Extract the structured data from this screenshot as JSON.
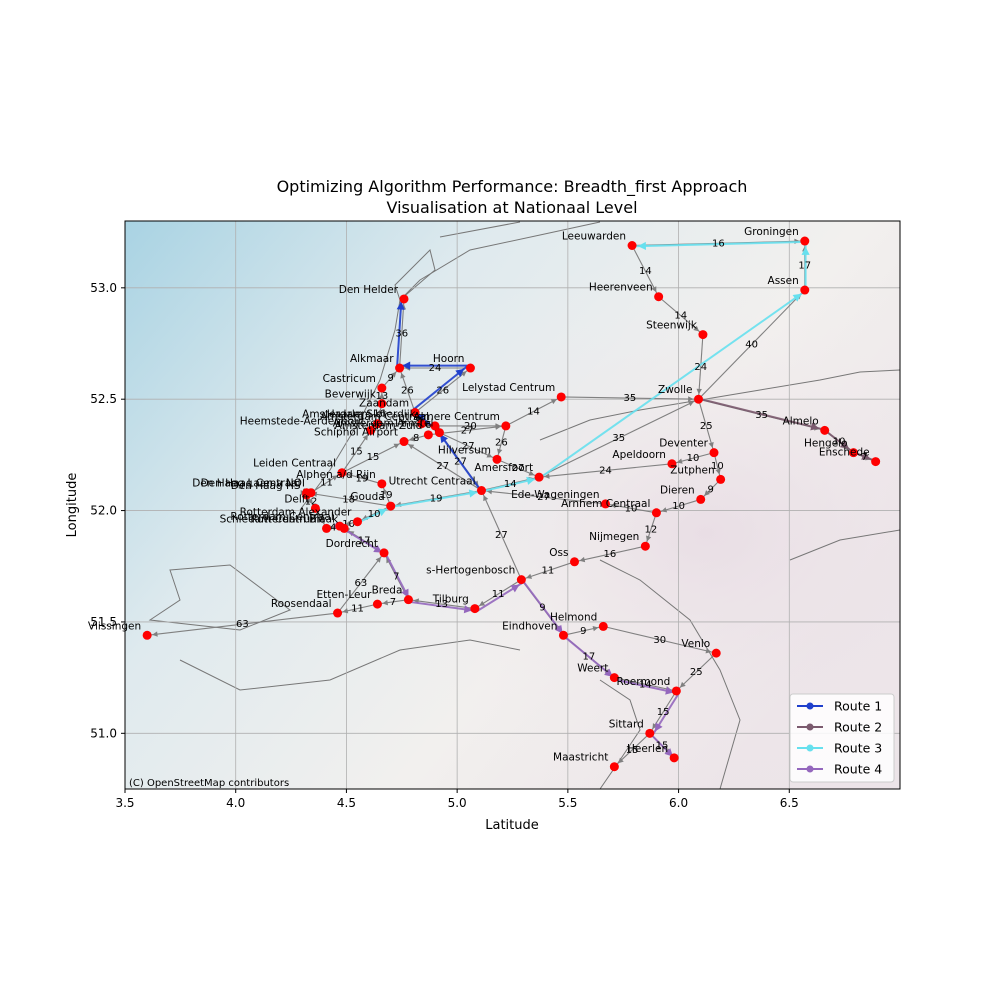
{
  "chart_data": {
    "type": "scatter",
    "title": "Optimizing Algorithm Performance: Breadth_first Approach",
    "subtitle": "Visualisation at Nationaal Level",
    "xlabel": "Latitude",
    "ylabel": "Longitude",
    "xlim": [
      3.5,
      7.0
    ],
    "ylim": [
      50.75,
      53.3
    ],
    "xticks": [
      "3.5",
      "4.0",
      "4.5",
      "5.0",
      "5.5",
      "6.0",
      "6.5"
    ],
    "yticks": [
      "51.0",
      "51.5",
      "52.0",
      "52.5",
      "53.0"
    ],
    "grid": true,
    "attribution": "(C) OpenStreetMap contributors",
    "legend_position": "lower-right",
    "colors": {
      "node": "#ff0000",
      "edge": "#808080",
      "route1": "#1f3fcc",
      "route2": "#7b5a6e",
      "route3": "#66e0ee",
      "route4": "#9467bd"
    },
    "stations": [
      {
        "name": "Groningen",
        "x": 6.57,
        "y": 53.21
      },
      {
        "name": "Leeuwarden",
        "x": 5.79,
        "y": 53.19
      },
      {
        "name": "Assen",
        "x": 6.57,
        "y": 52.99
      },
      {
        "name": "Heerenveen",
        "x": 5.91,
        "y": 52.96
      },
      {
        "name": "Den Helder",
        "x": 4.76,
        "y": 52.95
      },
      {
        "name": "Steenwijk",
        "x": 6.11,
        "y": 52.79
      },
      {
        "name": "Alkmaar",
        "x": 4.74,
        "y": 52.64
      },
      {
        "name": "Hoorn",
        "x": 5.06,
        "y": 52.64
      },
      {
        "name": "Castricum",
        "x": 4.66,
        "y": 52.55
      },
      {
        "name": "Lelystad Centrum",
        "x": 5.47,
        "y": 52.51
      },
      {
        "name": "Zwolle",
        "x": 6.09,
        "y": 52.5
      },
      {
        "name": "Beverwijk",
        "x": 4.66,
        "y": 52.48
      },
      {
        "name": "Zaandam",
        "x": 4.81,
        "y": 52.44
      },
      {
        "name": "Amsterdam Centraal",
        "x": 4.9,
        "y": 52.38
      },
      {
        "name": "Amsterdam Sloterdijk",
        "x": 4.84,
        "y": 52.39
      },
      {
        "name": "Haarlem",
        "x": 4.64,
        "y": 52.39
      },
      {
        "name": "Amsterdam Amstel",
        "x": 4.92,
        "y": 52.35
      },
      {
        "name": "Amsterdam Zuid",
        "x": 4.87,
        "y": 52.34
      },
      {
        "name": "Almere Centrum",
        "x": 5.22,
        "y": 52.38
      },
      {
        "name": "Heemstede-Aerdenhout",
        "x": 4.61,
        "y": 52.36
      },
      {
        "name": "Schiphol Airport",
        "x": 4.76,
        "y": 52.31
      },
      {
        "name": "Almelo",
        "x": 6.66,
        "y": 52.36
      },
      {
        "name": "Hilversum",
        "x": 5.18,
        "y": 52.23
      },
      {
        "name": "Hengelo",
        "x": 6.79,
        "y": 52.26
      },
      {
        "name": "Enschede",
        "x": 6.89,
        "y": 52.22
      },
      {
        "name": "Deventer",
        "x": 6.16,
        "y": 52.26
      },
      {
        "name": "Apeldoorn",
        "x": 5.97,
        "y": 52.21
      },
      {
        "name": "Zutphen",
        "x": 6.19,
        "y": 52.14
      },
      {
        "name": "Leiden Centraal",
        "x": 4.48,
        "y": 52.17
      },
      {
        "name": "Amersfoort",
        "x": 5.37,
        "y": 52.15
      },
      {
        "name": "Alphen a/d Rijn",
        "x": 4.66,
        "y": 52.12
      },
      {
        "name": "Den Haag Centraal",
        "x": 4.32,
        "y": 52.08
      },
      {
        "name": "Den Haag Laan v NOI",
        "x": 4.34,
        "y": 52.08
      },
      {
        "name": "Den Haag HS",
        "x": 4.32,
        "y": 52.07
      },
      {
        "name": "Utrecht Centraal",
        "x": 5.11,
        "y": 52.09
      },
      {
        "name": "Gouda",
        "x": 4.7,
        "y": 52.02
      },
      {
        "name": "Dieren",
        "x": 6.1,
        "y": 52.05
      },
      {
        "name": "Delft",
        "x": 4.36,
        "y": 52.01
      },
      {
        "name": "Ede-Wageningen",
        "x": 5.67,
        "y": 52.03
      },
      {
        "name": "Arnhem Centraal",
        "x": 5.9,
        "y": 51.99
      },
      {
        "name": "Rotterdam Blaak",
        "x": 4.49,
        "y": 51.92
      },
      {
        "name": "Rotterdam Centraal",
        "x": 4.47,
        "y": 51.93
      },
      {
        "name": "Rotterdam Alexander",
        "x": 4.55,
        "y": 51.95
      },
      {
        "name": "Schiedam Centrum",
        "x": 4.41,
        "y": 51.92
      },
      {
        "name": "Nijmegen",
        "x": 5.85,
        "y": 51.84
      },
      {
        "name": "Dordrecht",
        "x": 4.67,
        "y": 51.81
      },
      {
        "name": "Oss",
        "x": 5.53,
        "y": 51.77
      },
      {
        "name": "s-Hertogenbosch",
        "x": 5.29,
        "y": 51.69
      },
      {
        "name": "Breda",
        "x": 4.78,
        "y": 51.6
      },
      {
        "name": "Etten-Leur",
        "x": 4.64,
        "y": 51.58
      },
      {
        "name": "Tilburg",
        "x": 5.08,
        "y": 51.56
      },
      {
        "name": "Roosendaal",
        "x": 4.46,
        "y": 51.54
      },
      {
        "name": "Vlissingen",
        "x": 3.6,
        "y": 51.44
      },
      {
        "name": "Eindhoven",
        "x": 5.48,
        "y": 51.44
      },
      {
        "name": "Helmond",
        "x": 5.66,
        "y": 51.48
      },
      {
        "name": "Venlo",
        "x": 6.17,
        "y": 51.36
      },
      {
        "name": "Weert",
        "x": 5.71,
        "y": 51.25
      },
      {
        "name": "Roermond",
        "x": 5.99,
        "y": 51.19
      },
      {
        "name": "Sittard",
        "x": 5.87,
        "y": 51.0
      },
      {
        "name": "Heerlen",
        "x": 5.98,
        "y": 50.89
      },
      {
        "name": "Maastricht",
        "x": 5.71,
        "y": 50.85
      }
    ],
    "edges": [
      {
        "from": "Leeuwarden",
        "to": "Groningen",
        "weight": 16
      },
      {
        "from": "Assen",
        "to": "Groningen",
        "weight": 17
      },
      {
        "from": "Leeuwarden",
        "to": "Heerenveen",
        "weight": 14
      },
      {
        "from": "Heerenveen",
        "to": "Steenwijk",
        "weight": 14
      },
      {
        "from": "Steenwijk",
        "to": "Zwolle",
        "weight": 24
      },
      {
        "from": "Zwolle",
        "to": "Assen",
        "weight": 40
      },
      {
        "from": "Lelystad Centrum",
        "to": "Zwolle",
        "weight": 35
      },
      {
        "from": "Almere Centrum",
        "to": "Lelystad Centrum",
        "weight": 14
      },
      {
        "from": "Zwolle",
        "to": "Almelo",
        "weight": 35
      },
      {
        "from": "Almelo",
        "to": "Hengelo",
        "weight": 10
      },
      {
        "from": "Hengelo",
        "to": "Enschede",
        "weight": 7
      },
      {
        "from": "Zwolle",
        "to": "Deventer",
        "weight": 25
      },
      {
        "from": "Deventer",
        "to": "Apeldoorn",
        "weight": 10
      },
      {
        "from": "Deventer",
        "to": "Zutphen",
        "weight": 10
      },
      {
        "from": "Zutphen",
        "to": "Dieren",
        "weight": 9
      },
      {
        "from": "Dieren",
        "to": "Arnhem Centraal",
        "weight": 10
      },
      {
        "from": "Apeldoorn",
        "to": "Amersfoort",
        "weight": 24
      },
      {
        "from": "Amersfoort",
        "to": "Zwolle",
        "weight": 35
      },
      {
        "from": "Arnhem Centraal",
        "to": "Ede-Wageningen",
        "weight": 10
      },
      {
        "from": "Ede-Wageningen",
        "to": "Utrecht Centraal",
        "weight": 27
      },
      {
        "from": "Arnhem Centraal",
        "to": "Nijmegen",
        "weight": 12
      },
      {
        "from": "Nijmegen",
        "to": "Oss",
        "weight": 16
      },
      {
        "from": "Oss",
        "to": "s-Hertogenbosch",
        "weight": 11
      },
      {
        "from": "s-Hertogenbosch",
        "to": "Utrecht Centraal",
        "weight": 27
      },
      {
        "from": "s-Hertogenbosch",
        "to": "Tilburg",
        "weight": 11
      },
      {
        "from": "s-Hertogenbosch",
        "to": "Eindhoven",
        "weight": 9
      },
      {
        "from": "Tilburg",
        "to": "Breda",
        "weight": 13
      },
      {
        "from": "Breda",
        "to": "Etten-Leur",
        "weight": 7
      },
      {
        "from": "Etten-Leur",
        "to": "Roosendaal",
        "weight": 11
      },
      {
        "from": "Roosendaal",
        "to": "Vlissingen",
        "weight": 63
      },
      {
        "from": "Roosendaal",
        "to": "Dordrecht",
        "weight": 63
      },
      {
        "from": "Breda",
        "to": "Dordrecht",
        "weight": 7
      },
      {
        "from": "Dordrecht",
        "to": "Rotterdam Blaak",
        "weight": 17
      },
      {
        "from": "Rotterdam Blaak",
        "to": "Rotterdam Centraal",
        "weight": 4
      },
      {
        "from": "Schiedam Centrum",
        "to": "Rotterdam Centraal",
        "weight": 4
      },
      {
        "from": "Delft",
        "to": "Schiedam Centrum",
        "weight": 7
      },
      {
        "from": "Den Haag HS",
        "to": "Delft",
        "weight": 12
      },
      {
        "from": "Den Haag Centraal",
        "to": "Den Haag Laan v NOI",
        "weight": 12
      },
      {
        "from": "Den Haag Laan v NOI",
        "to": "Leiden Centraal",
        "weight": 11
      },
      {
        "from": "Leiden Centraal",
        "to": "Schiphol Airport",
        "weight": 15
      },
      {
        "from": "Leiden Centraal",
        "to": "Heemstede-Aerdenhout",
        "weight": 15
      },
      {
        "from": "Heemstede-Aerdenhout",
        "to": "Haarlem",
        "weight": 5
      },
      {
        "from": "Haarlem",
        "to": "Beverwijk",
        "weight": 16
      },
      {
        "from": "Beverwijk",
        "to": "Castricum",
        "weight": 13
      },
      {
        "from": "Castricum",
        "to": "Alkmaar",
        "weight": 9
      },
      {
        "from": "Haarlem",
        "to": "Amsterdam Sloterdijk",
        "weight": 11
      },
      {
        "from": "Amsterdam Sloterdijk",
        "to": "Amsterdam Centraal",
        "weight": 6
      },
      {
        "from": "Amsterdam Sloterdijk",
        "to": "Zaandam",
        "weight": 6
      },
      {
        "from": "Zaandam",
        "to": "Hoorn",
        "weight": 26
      },
      {
        "from": "Zaandam",
        "to": "Alkmaar",
        "weight": 26
      },
      {
        "from": "Alkmaar",
        "to": "Den Helder",
        "weight": 36
      },
      {
        "from": "Hoorn",
        "to": "Alkmaar",
        "weight": 24
      },
      {
        "from": "Amsterdam Centraal",
        "to": "Almere Centrum",
        "weight": 20
      },
      {
        "from": "Amsterdam Zuid",
        "to": "Almere Centrum",
        "weight": 27
      },
      {
        "from": "Amsterdam Centraal",
        "to": "Amsterdam Amstel",
        "weight": 8
      },
      {
        "from": "Amsterdam Zuid",
        "to": "Schiphol Airport",
        "weight": 8
      },
      {
        "from": "Almere Centrum",
        "to": "Hilversum",
        "weight": 26
      },
      {
        "from": "Hilversum",
        "to": "Amersfoort",
        "weight": 27
      },
      {
        "from": "Amsterdam Amstel",
        "to": "Hilversum",
        "weight": 27
      },
      {
        "from": "Amsterdam Amstel",
        "to": "Utrecht Centraal",
        "weight": 27
      },
      {
        "from": "Utrecht Centraal",
        "to": "Amersfoort",
        "weight": 14
      },
      {
        "from": "Utrecht Centraal",
        "to": "Schiphol Airport",
        "weight": 27
      },
      {
        "from": "Utrecht Centraal",
        "to": "Gouda",
        "weight": 19
      },
      {
        "from": "Gouda",
        "to": "Alphen a/d Rijn",
        "weight": 19
      },
      {
        "from": "Alphen a/d Rijn",
        "to": "Leiden Centraal",
        "weight": 19
      },
      {
        "from": "Gouda",
        "to": "Den Haag Centraal",
        "weight": 18
      },
      {
        "from": "Gouda",
        "to": "Rotterdam Alexander",
        "weight": 10
      },
      {
        "from": "Rotterdam Alexander",
        "to": "Rotterdam Centraal",
        "weight": 10
      },
      {
        "from": "Eindhoven",
        "to": "Helmond",
        "weight": 9
      },
      {
        "from": "Helmond",
        "to": "Venlo",
        "weight": 30
      },
      {
        "from": "Eindhoven",
        "to": "Weert",
        "weight": 17
      },
      {
        "from": "Weert",
        "to": "Roermond",
        "weight": 14
      },
      {
        "from": "Roermond",
        "to": "Sittard",
        "weight": 15
      },
      {
        "from": "Sittard",
        "to": "Heerlen",
        "weight": 15
      },
      {
        "from": "Sittard",
        "to": "Maastricht",
        "weight": 15
      },
      {
        "from": "Venlo",
        "to": "Roermond",
        "weight": 25
      }
    ],
    "series": [
      {
        "name": "Route 1",
        "color": "#1f3fcc",
        "stations": [
          "Utrecht Centraal",
          "Amsterdam Amstel",
          "Zaandam",
          "Hoorn",
          "Alkmaar",
          "Den Helder"
        ]
      },
      {
        "name": "Route 2",
        "color": "#7b5a6e",
        "stations": [
          "Zwolle",
          "Almelo",
          "Hengelo",
          "Enschede"
        ]
      },
      {
        "name": "Route 3",
        "color": "#66e0ee",
        "stations": [
          "Rotterdam Alexander",
          "Gouda",
          "Utrecht Centraal",
          "Amersfoort",
          "Assen",
          "Groningen",
          "Leeuwarden"
        ]
      },
      {
        "name": "Route 4",
        "color": "#9467bd",
        "stations": [
          "Rotterdam Centraal",
          "Rotterdam Blaak",
          "Dordrecht",
          "Breda",
          "Tilburg",
          "s-Hertogenbosch",
          "Eindhoven",
          "Weert",
          "Roermond",
          "Sittard",
          "Heerlen"
        ]
      }
    ]
  }
}
